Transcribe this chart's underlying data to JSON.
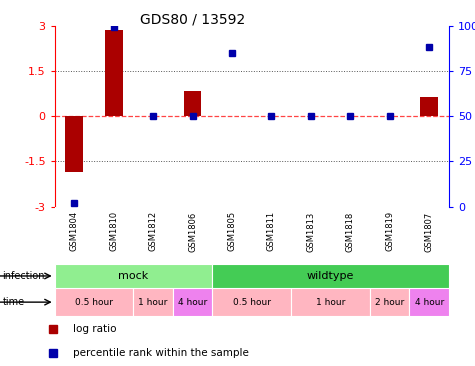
{
  "title": "GDS80 / 13592",
  "samples": [
    "GSM1804",
    "GSM1810",
    "GSM1812",
    "GSM1806",
    "GSM1805",
    "GSM1811",
    "GSM1813",
    "GSM1818",
    "GSM1819",
    "GSM1807"
  ],
  "log_ratio": [
    -1.85,
    2.85,
    0.0,
    0.85,
    0.0,
    0.0,
    0.0,
    0.0,
    0.0,
    0.65
  ],
  "percentile": [
    2,
    99,
    50,
    50,
    85,
    50,
    50,
    50,
    50,
    88
  ],
  "ylim": [
    -3,
    3
  ],
  "y2lim": [
    0,
    100
  ],
  "yticks_left": [
    -3,
    -1.5,
    0,
    1.5,
    3
  ],
  "yticks_right": [
    0,
    25,
    50,
    75,
    100
  ],
  "infection_groups": [
    {
      "label": "mock",
      "start": 0,
      "end": 4,
      "color": "#90EE90"
    },
    {
      "label": "wildtype",
      "start": 4,
      "end": 10,
      "color": "#44CC55"
    }
  ],
  "time_groups": [
    {
      "label": "0.5 hour",
      "start": 0,
      "end": 2,
      "color": "#FFB6C1"
    },
    {
      "label": "1 hour",
      "start": 2,
      "end": 3,
      "color": "#FFB6C1"
    },
    {
      "label": "4 hour",
      "start": 3,
      "end": 4,
      "color": "#EE82EE"
    },
    {
      "label": "0.5 hour",
      "start": 4,
      "end": 6,
      "color": "#FFB6C1"
    },
    {
      "label": "1 hour",
      "start": 6,
      "end": 8,
      "color": "#FFB6C1"
    },
    {
      "label": "2 hour",
      "start": 8,
      "end": 9,
      "color": "#FFB6C1"
    },
    {
      "label": "4 hour",
      "start": 9,
      "end": 10,
      "color": "#EE82EE"
    }
  ],
  "bar_color": "#AA0000",
  "dot_color": "#0000AA",
  "zero_line_color": "#FF4444",
  "dotted_line_color": "#555555",
  "bg_color": "#FFFFFF",
  "sample_bg_color": "#C8C8C8",
  "sample_divider_color": "#FFFFFF",
  "legend_items": [
    {
      "color": "#AA0000",
      "label": "log ratio"
    },
    {
      "color": "#0000AA",
      "label": "percentile rank within the sample"
    }
  ],
  "figsize": [
    4.75,
    3.66
  ],
  "dpi": 100
}
